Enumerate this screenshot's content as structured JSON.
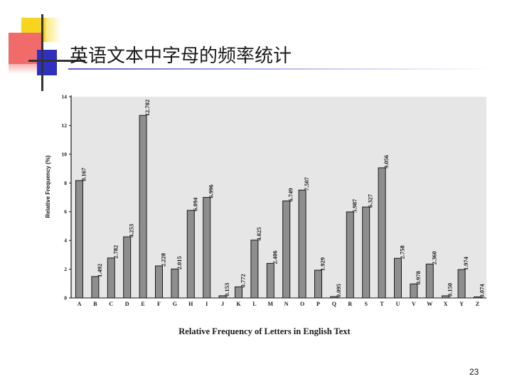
{
  "slide": {
    "title": "英语文本中字母的频率统计",
    "page_number": "23"
  },
  "chart_data": {
    "type": "bar",
    "title": "",
    "xlabel": "Relative Frequency of Letters in English Text",
    "ylabel": "Relative Frequency (%)",
    "ylim": [
      0,
      14
    ],
    "yticks": [
      0,
      2,
      4,
      6,
      8,
      10,
      12,
      14
    ],
    "grid": false,
    "categories": [
      "A",
      "B",
      "C",
      "D",
      "E",
      "F",
      "G",
      "H",
      "I",
      "J",
      "K",
      "L",
      "M",
      "N",
      "O",
      "P",
      "Q",
      "R",
      "S",
      "T",
      "U",
      "V",
      "W",
      "X",
      "Y",
      "Z"
    ],
    "values": [
      8.167,
      1.492,
      2.782,
      4.253,
      12.702,
      2.228,
      2.015,
      6.094,
      6.996,
      0.153,
      0.772,
      4.025,
      2.406,
      6.749,
      7.507,
      1.929,
      0.095,
      5.987,
      6.327,
      9.056,
      2.758,
      0.978,
      2.36,
      0.15,
      1.974,
      0.074
    ],
    "value_labels": [
      "8.167",
      "1.492",
      "2.782",
      "4.253",
      "12.702",
      "2.228",
      "2.015",
      "6.094",
      "6.996",
      "0.153",
      "0.772",
      "4.025",
      "2.406",
      "6.749",
      "7.507",
      "1.929",
      "0.095",
      "5.987",
      "6.327",
      "9.056",
      "2.758",
      "0.978",
      "2.360",
      "0.150",
      "1.974",
      "0.074"
    ],
    "colors": {
      "plot_bg": "#e6e6e6",
      "bar": "#8e8e8e",
      "bar_edge": "#1a1a1a",
      "text": "#1a1a1a"
    }
  }
}
